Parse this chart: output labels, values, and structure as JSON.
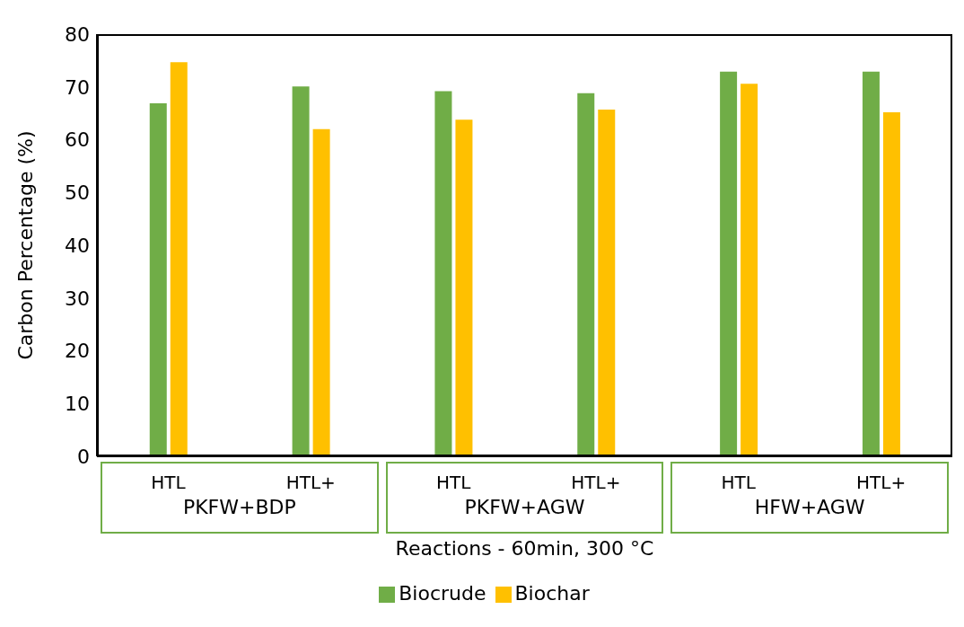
{
  "chart_data": {
    "type": "bar",
    "xlabel": "Reactions  - 60min, 300 °C",
    "ylabel": "Carbon Percentage (%)",
    "categories": [
      "HTL",
      "HTL+",
      "HTL",
      "HTL+",
      "HTL",
      "HTL+"
    ],
    "series": [
      {
        "name": "Biocrude",
        "color": "#70ad47",
        "values": [
          66.9,
          70.1,
          69.2,
          68.8,
          72.9,
          72.9
        ]
      },
      {
        "name": "Biochar",
        "color": "#ffc000",
        "values": [
          74.7,
          62.0,
          63.8,
          65.7,
          70.6,
          65.2
        ]
      }
    ],
    "annotations": [
      "PKFW+BDP",
      "PKFW+AGW",
      "HFW+AGW"
    ],
    "ylim": [
      0,
      80
    ],
    "yticks": [
      0,
      10,
      20,
      30,
      40,
      50,
      60,
      70,
      80
    ],
    "grid": false,
    "legend": "bottom"
  }
}
